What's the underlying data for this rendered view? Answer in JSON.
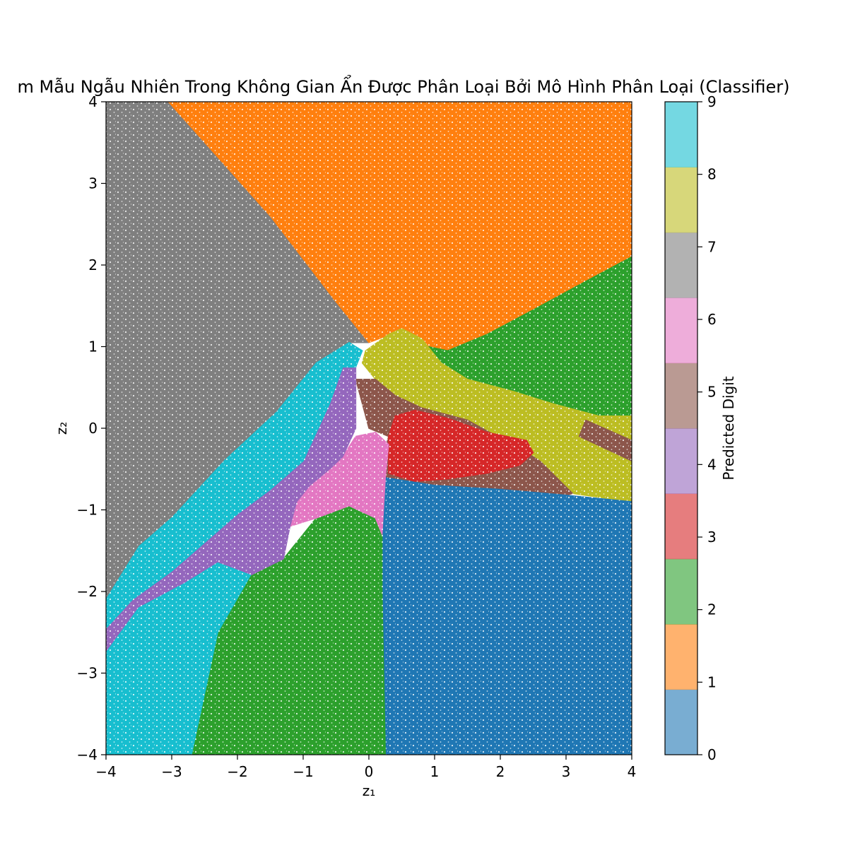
{
  "chart_data": {
    "type": "scatter",
    "title": "m Mẫu Ngẫu Nhiên Trong Không Gian Ẩn Được Phân Loại Bởi Mô Hình Phân Loại (Classifier)",
    "xlabel": "z₁",
    "ylabel": "z₂",
    "xlim": [
      -4,
      4
    ],
    "ylim": [
      -4,
      4
    ],
    "xticks": [
      "−4",
      "−3",
      "−2",
      "−1",
      "0",
      "1",
      "2",
      "3",
      "4"
    ],
    "yticks": [
      "−4",
      "−3",
      "−2",
      "−1",
      "0",
      "1",
      "2",
      "3",
      "4"
    ],
    "grid": false,
    "colorbar": {
      "label": "Predicted Digit",
      "range": [
        0,
        9
      ],
      "ticks": [
        "0",
        "1",
        "2",
        "3",
        "4",
        "5",
        "6",
        "7",
        "8",
        "9"
      ],
      "colormap": "tab10",
      "colors": [
        "#1f77b4",
        "#ff7f0e",
        "#2ca02c",
        "#d62728",
        "#9467bd",
        "#8c564b",
        "#e377c2",
        "#7f7f7f",
        "#bcbd22",
        "#17becf"
      ],
      "alpha": 0.6
    },
    "regions": [
      {
        "digit": 7,
        "color": "#7f7f7f",
        "polygon": [
          [
            -4,
            4
          ],
          [
            -3.05,
            4
          ],
          [
            -1.5,
            2.6
          ],
          [
            -0.5,
            1.55
          ],
          [
            0,
            1.05
          ],
          [
            -0.3,
            1.05
          ],
          [
            -0.8,
            0.8
          ],
          [
            -1.4,
            0.2
          ],
          [
            -2.2,
            -0.4
          ],
          [
            -3,
            -1.1
          ],
          [
            -3.5,
            -1.45
          ],
          [
            -4,
            -2.1
          ]
        ]
      },
      {
        "digit": 1,
        "color": "#ff7f0e",
        "polygon": [
          [
            -3.05,
            4
          ],
          [
            4,
            4
          ],
          [
            4,
            2.1
          ],
          [
            3.3,
            1.8
          ],
          [
            2.5,
            1.45
          ],
          [
            1.8,
            1.15
          ],
          [
            1.2,
            0.95
          ],
          [
            0.9,
            1
          ],
          [
            0.5,
            1.2
          ],
          [
            0,
            1.05
          ],
          [
            -0.5,
            1.55
          ],
          [
            -1.5,
            2.6
          ]
        ]
      },
      {
        "digit": 2,
        "color": "#2ca02c",
        "polygon": [
          [
            0.9,
            1
          ],
          [
            1.2,
            0.95
          ],
          [
            1.8,
            1.15
          ],
          [
            2.5,
            1.45
          ],
          [
            3.3,
            1.8
          ],
          [
            4,
            2.1
          ],
          [
            4,
            0.15
          ],
          [
            3.5,
            0.15
          ],
          [
            2.8,
            0.3
          ],
          [
            2.2,
            0.45
          ],
          [
            1.5,
            0.6
          ],
          [
            1.1,
            0.8
          ]
        ]
      },
      {
        "digit": 8,
        "color": "#bcbd22",
        "polygon": [
          [
            -0.05,
            0.95
          ],
          [
            0.3,
            1.15
          ],
          [
            0.5,
            1.22
          ],
          [
            0.8,
            1.1
          ],
          [
            1.1,
            0.8
          ],
          [
            1.5,
            0.6
          ],
          [
            2.2,
            0.45
          ],
          [
            2.8,
            0.3
          ],
          [
            3.5,
            0.15
          ],
          [
            4,
            0.15
          ],
          [
            4,
            -0.15
          ],
          [
            3.3,
            0.1
          ],
          [
            3.2,
            -0.1
          ],
          [
            4,
            -0.4
          ],
          [
            4,
            -0.9
          ],
          [
            3.1,
            -0.8
          ],
          [
            2.6,
            -0.4
          ],
          [
            2.4,
            -0.3
          ],
          [
            1.5,
            0.1
          ],
          [
            0.8,
            0.25
          ],
          [
            0.4,
            0.4
          ],
          [
            0.1,
            0.6
          ],
          [
            -0.1,
            0.8
          ]
        ]
      },
      {
        "digit": 5,
        "color": "#8c564b",
        "polygon": [
          [
            -0.2,
            0.6
          ],
          [
            0.1,
            0.6
          ],
          [
            0.4,
            0.4
          ],
          [
            0.8,
            0.25
          ],
          [
            1.5,
            0.1
          ],
          [
            2.4,
            -0.3
          ],
          [
            2.6,
            -0.4
          ],
          [
            3.1,
            -0.8
          ],
          [
            3,
            -0.82
          ],
          [
            2,
            -0.75
          ],
          [
            1,
            -0.7
          ],
          [
            0.2,
            -0.6
          ],
          [
            0.2,
            -0.4
          ],
          [
            0.3,
            -0.1
          ],
          [
            0,
            0
          ]
        ]
      },
      {
        "digit": 5,
        "color": "#8c564b",
        "polygon": [
          [
            3.3,
            0.1
          ],
          [
            4,
            -0.15
          ],
          [
            4,
            -0.4
          ],
          [
            3.2,
            -0.1
          ]
        ]
      },
      {
        "digit": 3,
        "color": "#d62728",
        "polygon": [
          [
            0.3,
            -0.1
          ],
          [
            0.4,
            0.15
          ],
          [
            0.7,
            0.22
          ],
          [
            1.2,
            0.12
          ],
          [
            1.8,
            -0.05
          ],
          [
            2.4,
            -0.15
          ],
          [
            2.5,
            -0.3
          ],
          [
            2.3,
            -0.45
          ],
          [
            1.8,
            -0.55
          ],
          [
            1.2,
            -0.62
          ],
          [
            0.7,
            -0.65
          ],
          [
            0.3,
            -0.55
          ]
        ]
      },
      {
        "digit": 0,
        "color": "#1f77b4",
        "polygon": [
          [
            0.2,
            -0.6
          ],
          [
            1,
            -0.7
          ],
          [
            2,
            -0.75
          ],
          [
            3,
            -0.82
          ],
          [
            4,
            -0.9
          ],
          [
            4,
            -4
          ],
          [
            0.25,
            -4
          ],
          [
            0.2,
            -2
          ],
          [
            0.2,
            -1.2
          ]
        ]
      },
      {
        "digit": 2,
        "color": "#2ca02c",
        "polygon": [
          [
            -2.7,
            -4
          ],
          [
            0.25,
            -4
          ],
          [
            0.2,
            -2
          ],
          [
            0.2,
            -1.2
          ],
          [
            0.1,
            -1.1
          ],
          [
            -0.3,
            -0.95
          ],
          [
            -0.8,
            -1.1
          ],
          [
            -1.3,
            -1.6
          ],
          [
            -1.8,
            -1.8
          ],
          [
            -2.3,
            -2.5
          ]
        ]
      },
      {
        "digit": 6,
        "color": "#e377c2",
        "polygon": [
          [
            -1.2,
            -1.2
          ],
          [
            -1.1,
            -0.9
          ],
          [
            -0.9,
            -0.7
          ],
          [
            -0.6,
            -0.5
          ],
          [
            -0.4,
            -0.35
          ],
          [
            -0.2,
            -0.1
          ],
          [
            0.1,
            -0.05
          ],
          [
            0.3,
            -0.2
          ],
          [
            0.25,
            -0.6
          ],
          [
            0.2,
            -1.3
          ],
          [
            0.1,
            -1.1
          ],
          [
            -0.3,
            -0.95
          ],
          [
            -0.8,
            -1.1
          ]
        ]
      },
      {
        "digit": 4,
        "color": "#9467bd",
        "polygon": [
          [
            -4,
            -2.45
          ],
          [
            -3.6,
            -2.1
          ],
          [
            -3,
            -1.75
          ],
          [
            -2.5,
            -1.4
          ],
          [
            -2,
            -1.05
          ],
          [
            -1.5,
            -0.75
          ],
          [
            -1,
            -0.4
          ],
          [
            -0.6,
            0.3
          ],
          [
            -0.4,
            0.75
          ],
          [
            -0.2,
            0.75
          ],
          [
            -0.2,
            0
          ],
          [
            -0.4,
            -0.35
          ],
          [
            -0.6,
            -0.5
          ],
          [
            -0.9,
            -0.7
          ],
          [
            -1.1,
            -0.9
          ],
          [
            -1.2,
            -1.2
          ],
          [
            -1.3,
            -1.6
          ],
          [
            -1.8,
            -1.8
          ],
          [
            -2.3,
            -1.65
          ],
          [
            -2.8,
            -1.9
          ],
          [
            -3.5,
            -2.2
          ],
          [
            -4,
            -2.75
          ]
        ]
      },
      {
        "digit": 9,
        "color": "#17becf",
        "polygon": [
          [
            -4,
            -2.1
          ],
          [
            -3.5,
            -1.45
          ],
          [
            -3,
            -1.1
          ],
          [
            -2.2,
            -0.4
          ],
          [
            -1.4,
            0.2
          ],
          [
            -0.8,
            0.8
          ],
          [
            -0.3,
            1.05
          ],
          [
            -0.1,
            0.95
          ],
          [
            -0.2,
            0.75
          ],
          [
            -0.4,
            0.75
          ],
          [
            -0.6,
            0.3
          ],
          [
            -1,
            -0.4
          ],
          [
            -1.5,
            -0.75
          ],
          [
            -2,
            -1.05
          ],
          [
            -2.5,
            -1.4
          ],
          [
            -3,
            -1.75
          ],
          [
            -3.6,
            -2.1
          ],
          [
            -4,
            -2.45
          ]
        ]
      },
      {
        "digit": 9,
        "color": "#17becf",
        "polygon": [
          [
            -4,
            -2.75
          ],
          [
            -3.5,
            -2.2
          ],
          [
            -2.8,
            -1.9
          ],
          [
            -2.3,
            -1.65
          ],
          [
            -1.8,
            -1.8
          ],
          [
            -2.3,
            -2.5
          ],
          [
            -2.7,
            -4
          ],
          [
            -4,
            -4
          ]
        ]
      }
    ]
  }
}
